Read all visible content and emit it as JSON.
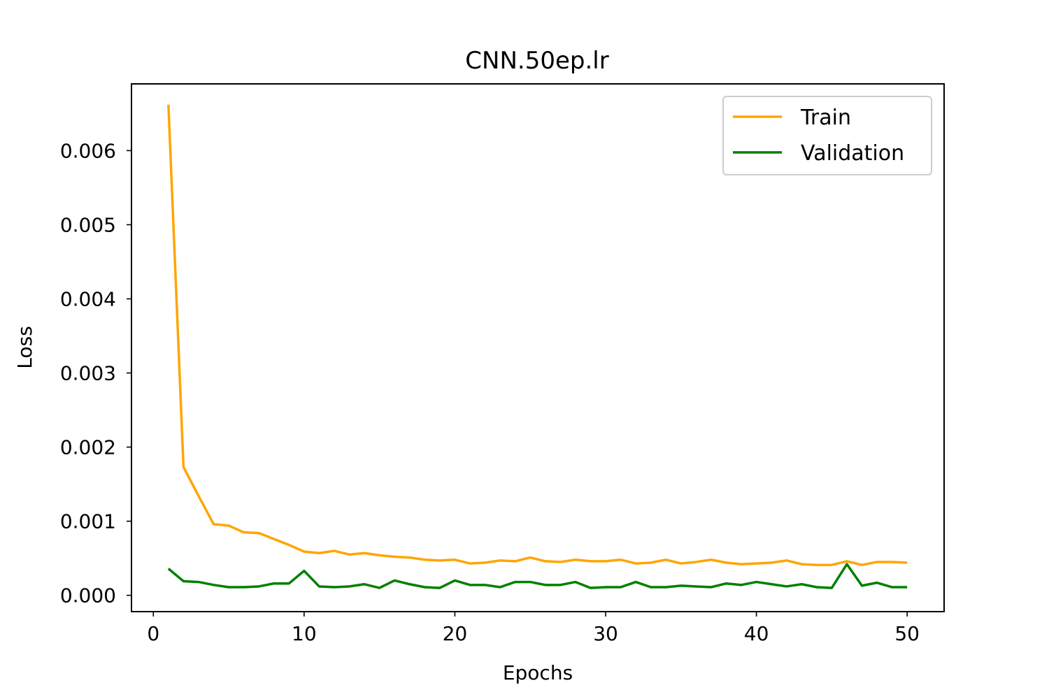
{
  "chart_data": {
    "type": "line",
    "title": "CNN.50ep.lr",
    "xlabel": "Epochs",
    "ylabel": "Loss",
    "xlim": [
      -1.45,
      52.45
    ],
    "ylim": [
      -0.00022,
      0.0069
    ],
    "xticks": [
      0,
      10,
      20,
      30,
      40,
      50
    ],
    "xtick_labels": [
      "0",
      "10",
      "20",
      "30",
      "40",
      "50"
    ],
    "yticks": [
      0.0,
      0.001,
      0.002,
      0.003,
      0.004,
      0.005,
      0.006
    ],
    "ytick_labels": [
      "0.000",
      "0.001",
      "0.002",
      "0.003",
      "0.004",
      "0.005",
      "0.006"
    ],
    "grid": false,
    "legend_position": "top-right",
    "x": [
      1,
      2,
      3,
      4,
      5,
      6,
      7,
      8,
      9,
      10,
      11,
      12,
      13,
      14,
      15,
      16,
      17,
      18,
      19,
      20,
      21,
      22,
      23,
      24,
      25,
      26,
      27,
      28,
      29,
      30,
      31,
      32,
      33,
      34,
      35,
      36,
      37,
      38,
      39,
      40,
      41,
      42,
      43,
      44,
      45,
      46,
      47,
      48,
      49,
      50
    ],
    "series": [
      {
        "name": "Train",
        "color": "#FFA500",
        "values": [
          0.00662,
          0.00173,
          0.00134,
          0.00096,
          0.00094,
          0.00085,
          0.00084,
          0.00076,
          0.00068,
          0.00059,
          0.00057,
          0.0006,
          0.00055,
          0.00057,
          0.00054,
          0.00052,
          0.00051,
          0.00048,
          0.00047,
          0.00048,
          0.00043,
          0.00044,
          0.00047,
          0.00046,
          0.00051,
          0.00046,
          0.00045,
          0.00048,
          0.00046,
          0.00046,
          0.00048,
          0.00043,
          0.00044,
          0.00048,
          0.00043,
          0.00045,
          0.00048,
          0.00044,
          0.00042,
          0.00043,
          0.00044,
          0.00047,
          0.00042,
          0.00041,
          0.00041,
          0.00046,
          0.00041,
          0.00045,
          0.00045,
          0.00044
        ]
      },
      {
        "name": "Validation",
        "color": "#008000",
        "values": [
          0.00036,
          0.00019,
          0.00018,
          0.00014,
          0.00011,
          0.00011,
          0.00012,
          0.00016,
          0.00016,
          0.00033,
          0.00012,
          0.00011,
          0.00012,
          0.00015,
          0.0001,
          0.0002,
          0.00015,
          0.00011,
          0.0001,
          0.0002,
          0.00014,
          0.00014,
          0.00011,
          0.00018,
          0.00018,
          0.00014,
          0.00014,
          0.00018,
          0.0001,
          0.00011,
          0.00011,
          0.00018,
          0.00011,
          0.00011,
          0.00013,
          0.00012,
          0.00011,
          0.00016,
          0.00014,
          0.00018,
          0.00015,
          0.00012,
          0.00015,
          0.00011,
          0.0001,
          0.00042,
          0.00013,
          0.00017,
          0.00011,
          0.00011
        ]
      }
    ]
  }
}
